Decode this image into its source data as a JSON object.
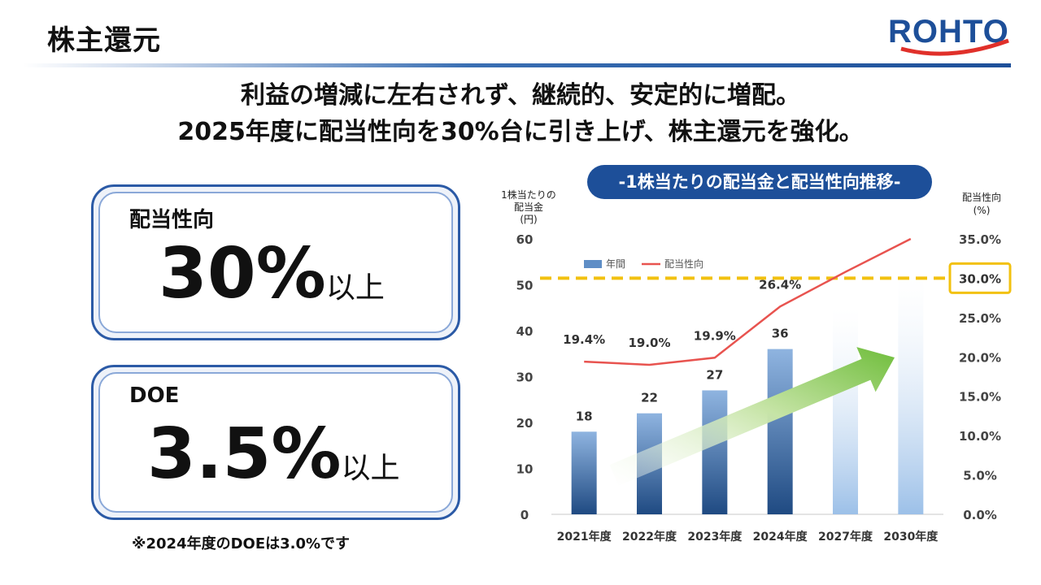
{
  "header": {
    "title": "株主還元",
    "logo_text": "ROHTO"
  },
  "headline": {
    "line1": "利益の増減に左右されず、継続的、安定的に増配。",
    "line2": "2025年度に配当性向を30%台に引き上げ、株主還元を強化。"
  },
  "kpis": {
    "payout": {
      "label": "配当性向",
      "value": "30%",
      "unit": "以上"
    },
    "doe": {
      "label": "DOE",
      "value": "3.5%",
      "unit": "以上"
    }
  },
  "footnote": "※2024年度のDOEは3.0%です",
  "colors": {
    "brand_blue": "#1d4f99",
    "line_red": "#e8534f",
    "target_yellow": "#f2c10f",
    "arrow_green": "#7bc143"
  },
  "chart_data": {
    "type": "bar",
    "title": "-1株当たりの配当金と配当性向推移-",
    "categories": [
      "2021年度",
      "2022年度",
      "2023年度",
      "2024年度",
      "2027年度",
      "2030年度"
    ],
    "ylabel_left": [
      "1株当たりの",
      "配当金",
      "(円)"
    ],
    "ylabel_right": [
      "配当性向",
      "(%)"
    ],
    "ylim_left": [
      0,
      60
    ],
    "ylim_right": [
      0,
      35
    ],
    "left_ticks": [
      "0",
      "10",
      "20",
      "30",
      "40",
      "50",
      "60"
    ],
    "right_ticks": [
      "0.0%",
      "5.0%",
      "10.0%",
      "15.0%",
      "20.0%",
      "25.0%",
      "30.0%",
      "35.0%"
    ],
    "legend": [
      "年間",
      "配当性向"
    ],
    "legend_position": "top-left",
    "series": [
      {
        "name": "年間",
        "axis": "left",
        "values": [
          18,
          22,
          27,
          36,
          45,
          52
        ],
        "labels": [
          "18",
          "22",
          "27",
          "36",
          "",
          ""
        ]
      },
      {
        "name": "配当性向",
        "axis": "right",
        "values": [
          19.4,
          19.0,
          19.9,
          26.4,
          30.8,
          35.0
        ],
        "labels": [
          "19.4%",
          "19.0%",
          "19.9%",
          "26.4%",
          "",
          ""
        ]
      }
    ],
    "target_line": {
      "axis": "right",
      "value": 30.0,
      "label": "30.0%"
    },
    "grid": false
  }
}
